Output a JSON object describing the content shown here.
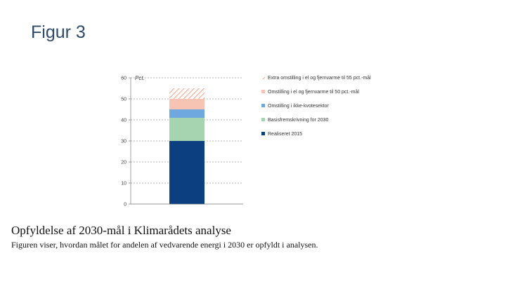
{
  "slide": {
    "title": "Figur 3",
    "caption_title": "Opfyldelse af 2030-mål i Klimarådets analyse",
    "caption_text": "Figuren viser, hvordan målet for andelen af vedvarende energi i 2030 er opfyldt i analysen."
  },
  "chart_data": {
    "type": "bar",
    "stacked": true,
    "categories": [
      ""
    ],
    "ylabel": "Pct.",
    "ylim": [
      0,
      60
    ],
    "yticks": [
      0,
      10,
      20,
      30,
      40,
      50,
      60
    ],
    "grid": true,
    "legend_position": "right",
    "series": [
      {
        "name": "Realiseret 2015",
        "values": [
          30
        ],
        "color": "#0b3f80",
        "pattern": "solid"
      },
      {
        "name": "Basisfremskrivning for 2030",
        "values": [
          11
        ],
        "color": "#a6d4b0",
        "pattern": "solid"
      },
      {
        "name": "Omstilling i ikke-kvotesektor",
        "values": [
          4
        ],
        "color": "#6ea8de",
        "pattern": "solid"
      },
      {
        "name": "Omstilling i el og fjernvarme til 50 pct.-mål",
        "values": [
          5
        ],
        "color": "#f7c4b4",
        "pattern": "solid"
      },
      {
        "name": "Extra omstilling i el og fjernvarme til 55 pct.-mål",
        "values": [
          5
        ],
        "color": "#f2b4a0",
        "pattern": "hatched"
      }
    ]
  }
}
